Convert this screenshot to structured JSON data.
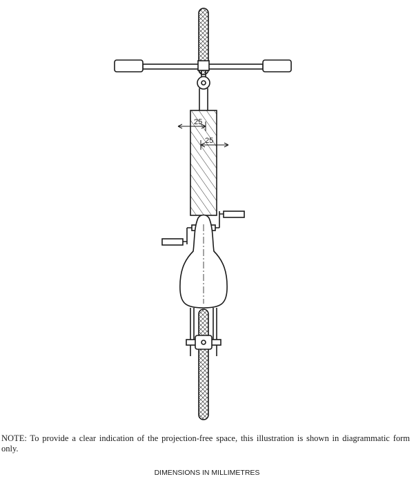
{
  "diagram": {
    "dimension_label_1": "25",
    "dimension_label_2": "25"
  },
  "note": "NOTE: To provide a clear indication of the projection-free space, this illustration is shown in diagrammatic form only.",
  "units_label": "DIMENSIONS IN MILLIMETRES"
}
